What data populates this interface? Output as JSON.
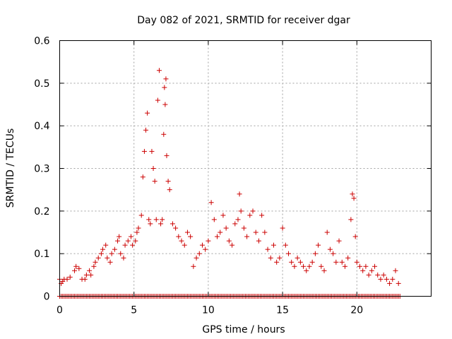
{
  "chart_data": {
    "type": "scatter",
    "title": "Day 082 of 2021, SRMTID for receiver dgar",
    "xlabel": "GPS time / hours",
    "ylabel": "SRMTID / TECUs",
    "xlim": [
      0,
      25
    ],
    "ylim": [
      0,
      0.6
    ],
    "xticks": [
      "0",
      "5",
      "10",
      "15",
      "20"
    ],
    "yticks": [
      "0",
      "0.1",
      "0.2",
      "0.3",
      "0.4",
      "0.5",
      "0.6"
    ],
    "grid": true,
    "legend": "none",
    "marker": "plus",
    "color": "#cc0000",
    "series": [
      {
        "name": "SRMTID",
        "x": [
          0.0,
          0.1,
          0.2,
          0.3,
          0.5,
          0.7,
          1.0,
          1.1,
          1.3,
          1.5,
          1.7,
          1.8,
          2.0,
          2.1,
          2.3,
          2.4,
          2.6,
          2.8,
          2.9,
          3.1,
          3.2,
          3.4,
          3.5,
          3.7,
          3.9,
          4.0,
          4.1,
          4.3,
          4.4,
          4.6,
          4.8,
          4.9,
          5.1,
          5.2,
          5.3,
          5.5,
          5.6,
          5.7,
          5.8,
          5.9,
          6.0,
          6.1,
          6.2,
          6.3,
          6.4,
          6.5,
          6.6,
          6.7,
          6.8,
          6.9,
          7.0,
          7.05,
          7.1,
          7.15,
          7.2,
          7.3,
          7.4,
          7.6,
          7.8,
          8.0,
          8.2,
          8.4,
          8.6,
          8.8,
          9.0,
          9.2,
          9.4,
          9.6,
          9.8,
          10.0,
          10.2,
          10.4,
          10.6,
          10.8,
          11.0,
          11.2,
          11.4,
          11.6,
          11.8,
          12.0,
          12.1,
          12.2,
          12.4,
          12.6,
          12.8,
          13.0,
          13.2,
          13.4,
          13.6,
          13.8,
          14.0,
          14.2,
          14.4,
          14.6,
          14.8,
          15.0,
          15.2,
          15.4,
          15.6,
          15.8,
          16.0,
          16.2,
          16.4,
          16.6,
          16.8,
          17.0,
          17.2,
          17.4,
          17.6,
          17.8,
          18.0,
          18.2,
          18.4,
          18.6,
          18.8,
          19.0,
          19.2,
          19.4,
          19.6,
          19.7,
          19.8,
          19.9,
          20.0,
          20.2,
          20.4,
          20.6,
          20.8,
          21.0,
          21.2,
          21.4,
          21.6,
          21.8,
          22.0,
          22.2,
          22.4,
          22.6,
          22.8
        ],
        "y": [
          0.04,
          0.03,
          0.035,
          0.04,
          0.04,
          0.045,
          0.06,
          0.07,
          0.065,
          0.04,
          0.04,
          0.05,
          0.06,
          0.05,
          0.07,
          0.08,
          0.09,
          0.1,
          0.11,
          0.12,
          0.09,
          0.08,
          0.1,
          0.11,
          0.13,
          0.14,
          0.1,
          0.09,
          0.12,
          0.13,
          0.14,
          0.12,
          0.13,
          0.15,
          0.16,
          0.19,
          0.28,
          0.34,
          0.39,
          0.43,
          0.18,
          0.17,
          0.34,
          0.3,
          0.27,
          0.18,
          0.46,
          0.53,
          0.17,
          0.18,
          0.38,
          0.49,
          0.45,
          0.51,
          0.33,
          0.27,
          0.25,
          0.17,
          0.16,
          0.14,
          0.13,
          0.12,
          0.15,
          0.14,
          0.07,
          0.09,
          0.1,
          0.12,
          0.11,
          0.13,
          0.22,
          0.18,
          0.14,
          0.15,
          0.19,
          0.16,
          0.13,
          0.12,
          0.17,
          0.18,
          0.24,
          0.2,
          0.16,
          0.14,
          0.19,
          0.2,
          0.15,
          0.13,
          0.19,
          0.15,
          0.11,
          0.09,
          0.12,
          0.08,
          0.09,
          0.16,
          0.12,
          0.1,
          0.08,
          0.07,
          0.09,
          0.08,
          0.07,
          0.06,
          0.07,
          0.08,
          0.1,
          0.12,
          0.07,
          0.06,
          0.15,
          0.11,
          0.1,
          0.08,
          0.13,
          0.08,
          0.07,
          0.09,
          0.18,
          0.24,
          0.23,
          0.14,
          0.08,
          0.07,
          0.06,
          0.07,
          0.05,
          0.06,
          0.07,
          0.05,
          0.04,
          0.05,
          0.04,
          0.03,
          0.04,
          0.06,
          0.03
        ]
      },
      {
        "name": "SRMTID baseline",
        "x_range": [
          0,
          22.9
        ],
        "x_step": 0.1,
        "y": 0
      }
    ]
  }
}
